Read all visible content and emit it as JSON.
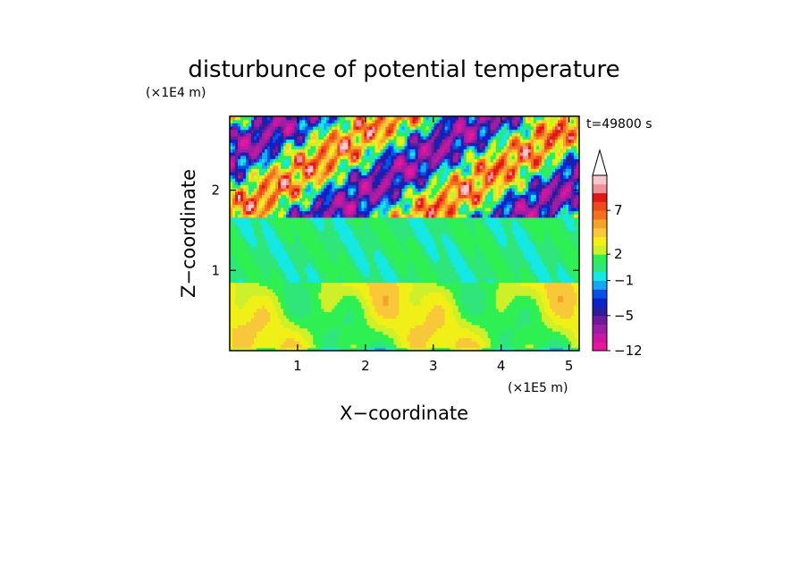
{
  "chart_data": {
    "type": "heatmap",
    "title": "disturbunce of potential temperature",
    "time_label": "t=49800 s",
    "xlabel": "X−coordinate",
    "ylabel": "Z−coordinate",
    "x_unit": "(×1E5 m)",
    "y_unit": "(×1E4 m)",
    "xlim": [
      0,
      5.15
    ],
    "ylim": [
      0,
      2.92
    ],
    "x_ticks": [
      {
        "value": 1,
        "label": "1"
      },
      {
        "value": 2,
        "label": "2"
      },
      {
        "value": 3,
        "label": "3"
      },
      {
        "value": 4,
        "label": "4"
      },
      {
        "value": 5,
        "label": "5"
      }
    ],
    "y_ticks": [
      {
        "value": 1,
        "label": "1"
      },
      {
        "value": 2,
        "label": "2"
      }
    ],
    "colorbar": {
      "levels": [
        -12,
        -10,
        -8,
        -6,
        -5,
        -4,
        -3,
        -2,
        -1,
        0,
        1,
        2,
        3,
        4,
        5,
        6,
        7,
        8,
        9,
        10
      ],
      "colors": [
        "#e8169e",
        "#c8189f",
        "#9c1ea6",
        "#6e1a9c",
        "#2a1c9a",
        "#0a22c8",
        "#0a50e6",
        "#18a8f2",
        "#15e8e2",
        "#2ee67a",
        "#2ef052",
        "#cdf02a",
        "#f0f018",
        "#f8c83a",
        "#f5a228",
        "#f47020",
        "#ec4a1a",
        "#e01818",
        "#f09098",
        "#f8c8c8"
      ],
      "labels": [
        {
          "value": -12,
          "label": "−12"
        },
        {
          "value": -5,
          "label": "−5"
        },
        {
          "value": -1,
          "label": "−1"
        },
        {
          "value": 2,
          "label": "2"
        },
        {
          "value": 7,
          "label": "7"
        }
      ],
      "extend": "max"
    }
  }
}
